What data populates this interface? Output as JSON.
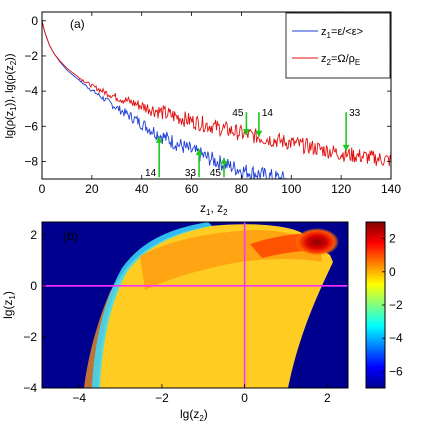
{
  "chart_data": [
    {
      "panel_label": "(a)",
      "type": "line",
      "xlabel": "z",
      "xlabel_sub": [
        "1",
        "2"
      ],
      "ylabel_parts": [
        "lg(ρ(z",
        "1",
        ")), lg(ρ(z",
        "2",
        "))"
      ],
      "xlim": [
        0,
        140
      ],
      "ylim": [
        -9,
        0.5
      ],
      "xticks": [
        0,
        20,
        40,
        60,
        80,
        100,
        120,
        140
      ],
      "yticks": [
        0,
        -2,
        -4,
        -6,
        -8
      ],
      "ytick_labels": [
        "0",
        "−2",
        "−4",
        "−6",
        "−8"
      ],
      "legend_position": "top-right",
      "series": [
        {
          "legend_prefix": "z",
          "legend_sub": "1",
          "legend_text": "=ε/<ε>",
          "color": "#1f3fd6",
          "x": [
            0,
            1,
            2,
            3,
            5,
            7,
            10,
            15,
            20,
            25,
            30,
            35,
            40,
            45,
            50,
            55,
            60,
            65,
            70,
            75,
            80,
            85,
            90,
            95,
            98
          ],
          "y": [
            0,
            -0.6,
            -1.0,
            -1.4,
            -1.9,
            -2.3,
            -2.8,
            -3.4,
            -3.95,
            -4.45,
            -4.95,
            -5.4,
            -5.85,
            -6.3,
            -6.7,
            -7.05,
            -7.4,
            -7.7,
            -8.0,
            -8.25,
            -8.5,
            -8.65,
            -8.8,
            -8.95,
            -9.0
          ]
        },
        {
          "legend_prefix": "z",
          "legend_sub": "2",
          "legend_text": "=Ω/ρ",
          "legend_text_sub": "E",
          "color": "#e01010",
          "x": [
            0,
            1,
            2,
            3,
            5,
            7,
            10,
            15,
            20,
            25,
            30,
            40,
            50,
            60,
            70,
            80,
            90,
            100,
            110,
            120,
            130,
            140
          ],
          "y": [
            0,
            -0.6,
            -1.0,
            -1.4,
            -1.9,
            -2.25,
            -2.7,
            -3.25,
            -3.7,
            -4.05,
            -4.35,
            -4.85,
            -5.3,
            -5.7,
            -6.05,
            -6.4,
            -6.7,
            -6.95,
            -7.25,
            -7.55,
            -7.75,
            -7.95
          ]
        }
      ],
      "annotations": [
        {
          "label": "45",
          "x": 82,
          "y_tail": -5.2,
          "y_head": -6.5,
          "label_side": "left",
          "color": "#1ec81e"
        },
        {
          "label": "14",
          "x": 87,
          "y_tail": -5.2,
          "y_head": -6.6,
          "label_side": "right",
          "color": "#1ec81e"
        },
        {
          "label": "33",
          "x": 122,
          "y_tail": -5.2,
          "y_head": -7.4,
          "label_side": "right",
          "color": "#1ec81e"
        },
        {
          "label": "14",
          "x": 47,
          "y_tail": -8.9,
          "y_head": -6.6,
          "label_side": "left",
          "color": "#1ec81e"
        },
        {
          "label": "33",
          "x": 63,
          "y_tail": -8.9,
          "y_head": -7.3,
          "label_side": "left",
          "color": "#1ec81e"
        },
        {
          "label": "45",
          "x": 73,
          "y_tail": -8.9,
          "y_head": -7.8,
          "label_side": "left",
          "color": "#1ec81e"
        }
      ]
    },
    {
      "panel_label": "(b)",
      "type": "heatmap",
      "xlabel": "lg(z",
      "xlabel_sub": "2",
      "xlabel_end": ")",
      "ylabel": "lg(z",
      "ylabel_sub": "1",
      "ylabel_end": ")",
      "xlim": [
        -4.9,
        2.5
      ],
      "ylim": [
        -4,
        2.5
      ],
      "xticks": [
        -4,
        -2,
        0,
        2
      ],
      "xtick_labels": [
        "−4",
        "−2",
        "0",
        "2"
      ],
      "yticks": [
        2,
        0,
        -2,
        -4
      ],
      "ytick_labels": [
        "2",
        "0",
        "−2",
        "−4"
      ],
      "crosshair": {
        "x": 0,
        "y": 0,
        "color": "#ff33ff"
      },
      "colorbar": {
        "range": [
          -7,
          3
        ],
        "ticks": [
          2,
          0,
          -2,
          -4,
          -6
        ],
        "tick_labels": [
          "2",
          "0",
          "−2",
          "−4",
          "−6"
        ],
        "colormap": "jet"
      },
      "regions": [
        {
          "value": -1.2,
          "shape": "main-lobe"
        },
        {
          "value": 0.6,
          "shape": "upper-band"
        },
        {
          "value": 2.7,
          "shape": "peak",
          "center": [
            1.7,
            1.8
          ]
        },
        {
          "value": -1.8,
          "shape": "lower-left-tail"
        }
      ]
    }
  ]
}
